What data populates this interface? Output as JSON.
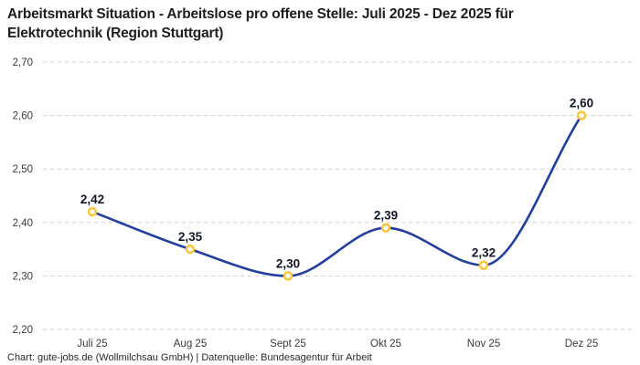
{
  "header": {
    "title_line1": "Arbeitsmarkt Situation - Arbeitslose pro offene Stelle: Juli 2025 - Dez 2025 für",
    "title_line2": "Elektrotechnik (Region Stuttgart)"
  },
  "chart_data": {
    "type": "line",
    "title": "Arbeitsmarkt Situation - Arbeitslose pro offene Stelle: Juli 2025 - Dez 2025 für Elektrotechnik (Region Stuttgart)",
    "categories": [
      "Juli 25",
      "Aug 25",
      "Sept 25",
      "Okt 25",
      "Nov 25",
      "Dez 25"
    ],
    "values": [
      2.42,
      2.35,
      2.3,
      2.39,
      2.32,
      2.6
    ],
    "value_labels": [
      "2,42",
      "2,35",
      "2,30",
      "2,39",
      "2,32",
      "2,60"
    ],
    "y_ticks": [
      2.2,
      2.3,
      2.4,
      2.5,
      2.6,
      2.7
    ],
    "y_tick_labels": [
      "2,20",
      "2,30",
      "2,40",
      "2,50",
      "2,60",
      "2,70"
    ],
    "ylim": [
      2.2,
      2.7
    ],
    "xlabel": "",
    "ylabel": "",
    "legend": "none",
    "grid": "horizontal-dashed",
    "curve": "smooth-monotone",
    "colors": {
      "line": "#223f9f",
      "marker_ring": "#fcc436",
      "marker_fill": "#ffffff",
      "grid": "#cdcdcd",
      "axis_text": "#3a3a3a",
      "point_label": "#101828"
    }
  },
  "footer": {
    "text": "Chart: gute-jobs.de (Wollmilchsau GmbH) | Datenquelle: Bundesagentur für Arbeit"
  }
}
